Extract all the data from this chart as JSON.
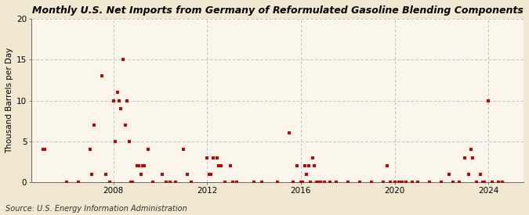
{
  "title": "Monthly U.S. Net Imports from Germany of Reformulated Gasoline Blending Components",
  "ylabel": "Thousand Barrels per Day",
  "source": "Source: U.S. Energy Information Administration",
  "background_color": "#f0e8d0",
  "plot_bg_color": "#faf6ec",
  "marker_color": "#cc0000",
  "marker_size": 3.5,
  "ylim": [
    0,
    20
  ],
  "yticks": [
    0,
    5,
    10,
    15,
    20
  ],
  "data": [
    {
      "date": 2005.0,
      "value": 4
    },
    {
      "date": 2005.08,
      "value": 4
    },
    {
      "date": 2006.0,
      "value": 0
    },
    {
      "date": 2006.5,
      "value": 0
    },
    {
      "date": 2007.0,
      "value": 4
    },
    {
      "date": 2007.08,
      "value": 1
    },
    {
      "date": 2007.17,
      "value": 7
    },
    {
      "date": 2007.5,
      "value": 13
    },
    {
      "date": 2007.67,
      "value": 1
    },
    {
      "date": 2007.83,
      "value": 0
    },
    {
      "date": 2008.0,
      "value": 10
    },
    {
      "date": 2008.08,
      "value": 5
    },
    {
      "date": 2008.17,
      "value": 11
    },
    {
      "date": 2008.25,
      "value": 10
    },
    {
      "date": 2008.33,
      "value": 9
    },
    {
      "date": 2008.42,
      "value": 15
    },
    {
      "date": 2008.5,
      "value": 7
    },
    {
      "date": 2008.58,
      "value": 10
    },
    {
      "date": 2008.67,
      "value": 5
    },
    {
      "date": 2008.75,
      "value": 0
    },
    {
      "date": 2008.83,
      "value": 0
    },
    {
      "date": 2009.0,
      "value": 2
    },
    {
      "date": 2009.08,
      "value": 2
    },
    {
      "date": 2009.17,
      "value": 1
    },
    {
      "date": 2009.25,
      "value": 2
    },
    {
      "date": 2009.33,
      "value": 2
    },
    {
      "date": 2009.5,
      "value": 4
    },
    {
      "date": 2009.67,
      "value": 0
    },
    {
      "date": 2010.08,
      "value": 1
    },
    {
      "date": 2010.25,
      "value": 0
    },
    {
      "date": 2010.42,
      "value": 0
    },
    {
      "date": 2010.67,
      "value": 0
    },
    {
      "date": 2011.0,
      "value": 4
    },
    {
      "date": 2011.17,
      "value": 1
    },
    {
      "date": 2011.33,
      "value": 0
    },
    {
      "date": 2012.0,
      "value": 3
    },
    {
      "date": 2012.08,
      "value": 1
    },
    {
      "date": 2012.17,
      "value": 1
    },
    {
      "date": 2012.25,
      "value": 3
    },
    {
      "date": 2012.42,
      "value": 3
    },
    {
      "date": 2012.5,
      "value": 2
    },
    {
      "date": 2012.58,
      "value": 2
    },
    {
      "date": 2012.75,
      "value": 0
    },
    {
      "date": 2013.0,
      "value": 2
    },
    {
      "date": 2013.08,
      "value": 0
    },
    {
      "date": 2013.25,
      "value": 0
    },
    {
      "date": 2014.0,
      "value": 0
    },
    {
      "date": 2014.33,
      "value": 0
    },
    {
      "date": 2015.0,
      "value": 0
    },
    {
      "date": 2015.5,
      "value": 6
    },
    {
      "date": 2015.67,
      "value": 0
    },
    {
      "date": 2015.83,
      "value": 2
    },
    {
      "date": 2016.0,
      "value": 0
    },
    {
      "date": 2016.08,
      "value": 0
    },
    {
      "date": 2016.17,
      "value": 2
    },
    {
      "date": 2016.25,
      "value": 1
    },
    {
      "date": 2016.33,
      "value": 2
    },
    {
      "date": 2016.42,
      "value": 0
    },
    {
      "date": 2016.5,
      "value": 3
    },
    {
      "date": 2016.58,
      "value": 2
    },
    {
      "date": 2016.67,
      "value": 0
    },
    {
      "date": 2016.75,
      "value": 0
    },
    {
      "date": 2016.83,
      "value": 0
    },
    {
      "date": 2017.0,
      "value": 0
    },
    {
      "date": 2017.25,
      "value": 0
    },
    {
      "date": 2017.5,
      "value": 0
    },
    {
      "date": 2018.0,
      "value": 0
    },
    {
      "date": 2018.5,
      "value": 0
    },
    {
      "date": 2019.0,
      "value": 0
    },
    {
      "date": 2019.5,
      "value": 0
    },
    {
      "date": 2019.67,
      "value": 2
    },
    {
      "date": 2019.83,
      "value": 0
    },
    {
      "date": 2020.0,
      "value": 0
    },
    {
      "date": 2020.17,
      "value": 0
    },
    {
      "date": 2020.33,
      "value": 0
    },
    {
      "date": 2020.5,
      "value": 0
    },
    {
      "date": 2020.75,
      "value": 0
    },
    {
      "date": 2021.0,
      "value": 0
    },
    {
      "date": 2021.5,
      "value": 0
    },
    {
      "date": 2022.0,
      "value": 0
    },
    {
      "date": 2022.33,
      "value": 1
    },
    {
      "date": 2022.5,
      "value": 0
    },
    {
      "date": 2022.75,
      "value": 0
    },
    {
      "date": 2023.0,
      "value": 3
    },
    {
      "date": 2023.17,
      "value": 1
    },
    {
      "date": 2023.25,
      "value": 4
    },
    {
      "date": 2023.33,
      "value": 3
    },
    {
      "date": 2023.5,
      "value": 0
    },
    {
      "date": 2023.67,
      "value": 1
    },
    {
      "date": 2023.75,
      "value": 0
    },
    {
      "date": 2023.83,
      "value": 0
    },
    {
      "date": 2024.0,
      "value": 10
    },
    {
      "date": 2024.17,
      "value": 0
    },
    {
      "date": 2024.42,
      "value": 0
    },
    {
      "date": 2024.58,
      "value": 0
    }
  ],
  "xlim": [
    2004.5,
    2025.5
  ],
  "xtick_years": [
    2008,
    2012,
    2016,
    2020,
    2024
  ],
  "vline_years": [
    2008,
    2012,
    2016,
    2020,
    2024
  ],
  "title_fontsize": 9,
  "axis_fontsize": 7.5,
  "source_fontsize": 7
}
